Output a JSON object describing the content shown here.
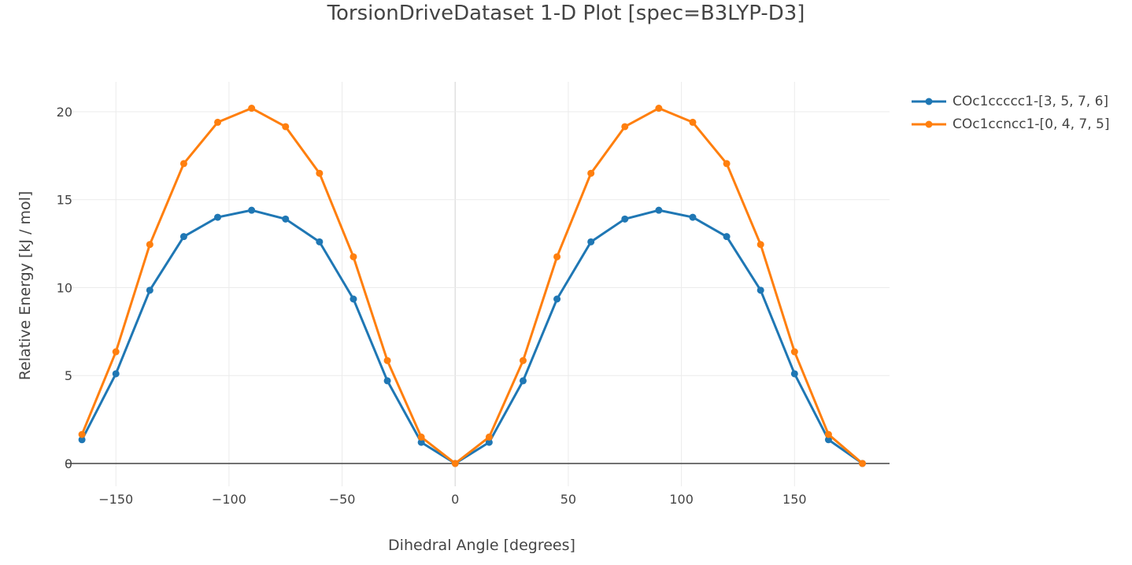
{
  "chart_data": {
    "type": "line",
    "title": "TorsionDriveDataset 1-D Plot [spec=B3LYP-D3]",
    "xlabel": "Dihedral Angle [degrees]",
    "ylabel": "Relative Energy [kJ / mol]",
    "xlim": [
      -172,
      192
    ],
    "ylim": [
      -1.3,
      21.7
    ],
    "xticks": [
      -150,
      -100,
      -50,
      0,
      50,
      100,
      150
    ],
    "xtick_labels": [
      "−150",
      "−100",
      "−50",
      "0",
      "50",
      "100",
      "150"
    ],
    "yticks": [
      0,
      5,
      10,
      15,
      20
    ],
    "ytick_labels": [
      "0",
      "5",
      "10",
      "15",
      "20"
    ],
    "grid": true,
    "legend_position": "top-right, outside plot",
    "x": [
      -165,
      -150,
      -135,
      -120,
      -105,
      -90,
      -75,
      -60,
      -45,
      -30,
      -15,
      0,
      15,
      30,
      45,
      60,
      75,
      90,
      105,
      120,
      135,
      150,
      165,
      180
    ],
    "series": [
      {
        "name": "COc1ccccc1-[3, 5, 7, 6]",
        "color": "#1f77b4",
        "values": [
          1.35,
          5.1,
          9.85,
          12.9,
          14.0,
          14.4,
          13.9,
          12.6,
          9.35,
          4.7,
          1.2,
          0.0,
          1.2,
          4.7,
          9.35,
          12.6,
          13.9,
          14.4,
          14.0,
          12.9,
          9.85,
          5.1,
          1.35,
          0.0
        ]
      },
      {
        "name": "COc1ccncc1-[0, 4, 7, 5]",
        "color": "#ff7f0e",
        "values": [
          1.65,
          6.35,
          12.45,
          17.05,
          19.4,
          20.2,
          19.15,
          16.5,
          11.75,
          5.85,
          1.5,
          0.0,
          1.5,
          5.85,
          11.75,
          16.5,
          19.15,
          20.2,
          19.4,
          17.05,
          12.45,
          6.35,
          1.65,
          0.0
        ]
      }
    ]
  }
}
